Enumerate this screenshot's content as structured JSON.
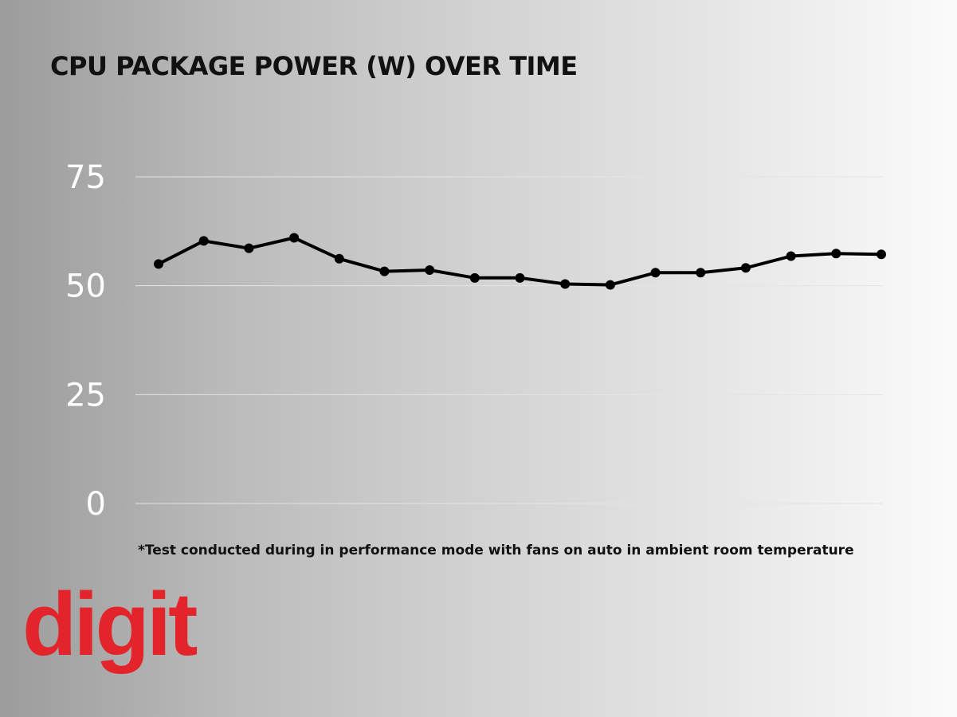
{
  "title": "CPU PACKAGE POWER (W) OVER TIME",
  "footnote": "*Test conducted during in performance mode with fans on auto in ambient room temperature",
  "logo": {
    "text": "digit",
    "color": "#e3252b"
  },
  "colors": {
    "line": "#000000",
    "gridline": "#e4e4e4",
    "tick_label": "#ffffff",
    "title": "#111111"
  },
  "chart_data": {
    "type": "line",
    "title": "CPU PACKAGE POWER (W) OVER TIME",
    "xlabel": "",
    "ylabel": "",
    "ylim": [
      0,
      75
    ],
    "yticks": [
      0,
      25,
      50,
      75
    ],
    "grid": true,
    "series": [
      {
        "values": [
          55,
          60.3,
          58.6,
          61,
          56.2,
          53.3,
          53.6,
          51.8,
          51.8,
          50.4,
          50.2,
          53,
          53,
          54.1,
          56.8,
          57.4,
          57.2
        ]
      }
    ]
  }
}
